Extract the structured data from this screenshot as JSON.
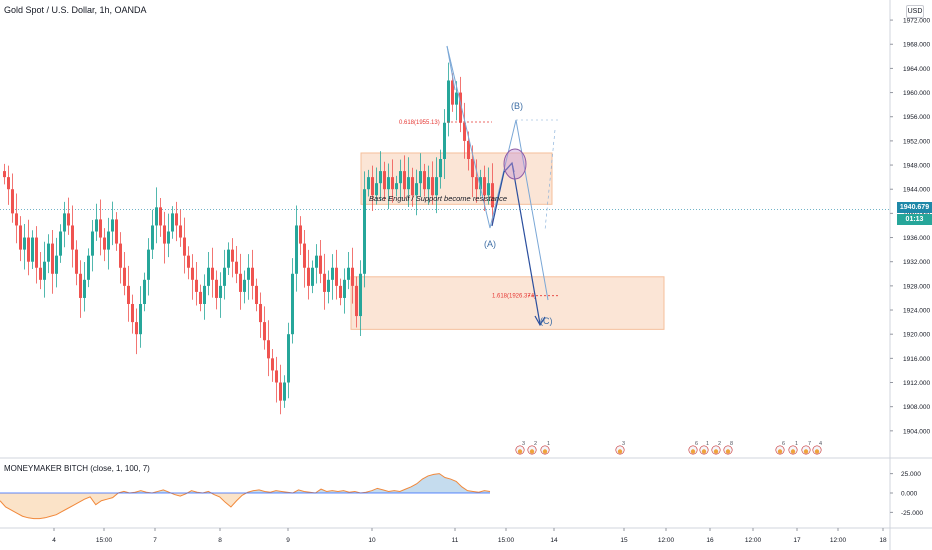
{
  "header": {
    "symbol_title": "Gold Spot / U.S. Dollar, 1h, OANDA",
    "currency_badge": "USD"
  },
  "indicator": {
    "title": "MONEYMAKER BITCH (close, 1, 100, 7)",
    "y_ticks": [
      "25.000",
      "0.000",
      "-25.000"
    ]
  },
  "price_scale": {
    "ticks": [
      "1972.000",
      "1968.000",
      "1964.000",
      "1960.000",
      "1956.000",
      "1952.000",
      "1948.000",
      "1944.000",
      "1940.000",
      "1936.000",
      "1932.000",
      "1928.000",
      "1924.000",
      "1920.000",
      "1916.000",
      "1912.000",
      "1908.000",
      "1904.000"
    ],
    "last_price": "1940.679",
    "countdown": "01:13"
  },
  "time_scale": {
    "ticks": [
      "4",
      "15:00",
      "7",
      "8",
      "9",
      "10",
      "11",
      "15:00",
      "14",
      "15",
      "12:00",
      "16",
      "12:00",
      "17",
      "12:00",
      "18"
    ]
  },
  "annotations": {
    "fib_0618": "0.618(1955.13)",
    "fib_1618": "1.618(1926.374)",
    "zone_text": "Base Engulf / Support become resistance",
    "wave_A": "(A)",
    "wave_B": "(B)",
    "wave_C": "(C)"
  },
  "events": {
    "badges": [
      "3",
      "2",
      "1",
      "3",
      "6",
      "1",
      "2",
      "8",
      "6",
      "1",
      "7",
      "4"
    ]
  },
  "colors": {
    "bull": "#26a69a",
    "bear": "#ef5350",
    "zone_fill": "#fbe1cf",
    "zone_stroke": "#f3b48a",
    "wave_line": "#7aa7d6",
    "projection_line": "#2b4f9e",
    "indicator_area": "#fbe3c8",
    "indicator_line": "#f1883a",
    "indicator_pos_fill": "#bfdaf2",
    "last_price_tag": "#1e88a8",
    "countdown_tag": "#26a69a"
  },
  "chart_data": {
    "type": "candlestick",
    "title": "Gold Spot / U.S. Dollar, 1h, OANDA",
    "ylim": [
      1900,
      1974
    ],
    "last_price": 1940.679,
    "close_path": [
      {
        "x": 0,
        "close": 1946
      },
      {
        "x": 4,
        "close": 1944
      },
      {
        "x": 8,
        "close": 1940
      },
      {
        "x": 12,
        "close": 1938
      },
      {
        "x": 16,
        "close": 1934
      },
      {
        "x": 20,
        "close": 1936
      },
      {
        "x": 24,
        "close": 1932
      },
      {
        "x": 28,
        "close": 1936
      },
      {
        "x": 32,
        "close": 1931
      },
      {
        "x": 36,
        "close": 1929
      },
      {
        "x": 40,
        "close": 1932
      },
      {
        "x": 44,
        "close": 1935
      },
      {
        "x": 48,
        "close": 1930
      },
      {
        "x": 52,
        "close": 1933
      },
      {
        "x": 56,
        "close": 1937
      },
      {
        "x": 60,
        "close": 1940
      },
      {
        "x": 64,
        "close": 1938
      },
      {
        "x": 68,
        "close": 1934
      },
      {
        "x": 72,
        "close": 1930
      },
      {
        "x": 76,
        "close": 1926
      },
      {
        "x": 80,
        "close": 1929
      },
      {
        "x": 84,
        "close": 1933
      },
      {
        "x": 88,
        "close": 1937
      },
      {
        "x": 92,
        "close": 1939
      },
      {
        "x": 96,
        "close": 1936
      },
      {
        "x": 100,
        "close": 1934
      },
      {
        "x": 104,
        "close": 1937
      },
      {
        "x": 108,
        "close": 1939
      },
      {
        "x": 112,
        "close": 1935
      },
      {
        "x": 116,
        "close": 1931
      },
      {
        "x": 120,
        "close": 1928
      },
      {
        "x": 124,
        "close": 1925
      },
      {
        "x": 128,
        "close": 1922
      },
      {
        "x": 132,
        "close": 1920
      },
      {
        "x": 136,
        "close": 1925
      },
      {
        "x": 140,
        "close": 1929
      },
      {
        "x": 144,
        "close": 1934
      },
      {
        "x": 148,
        "close": 1938
      },
      {
        "x": 152,
        "close": 1941
      },
      {
        "x": 156,
        "close": 1938
      },
      {
        "x": 160,
        "close": 1935
      },
      {
        "x": 164,
        "close": 1937
      },
      {
        "x": 168,
        "close": 1940
      },
      {
        "x": 172,
        "close": 1938
      },
      {
        "x": 176,
        "close": 1936
      },
      {
        "x": 180,
        "close": 1933
      },
      {
        "x": 184,
        "close": 1931
      },
      {
        "x": 188,
        "close": 1929
      },
      {
        "x": 192,
        "close": 1927
      },
      {
        "x": 196,
        "close": 1925
      },
      {
        "x": 200,
        "close": 1928
      },
      {
        "x": 204,
        "close": 1931
      },
      {
        "x": 208,
        "close": 1929
      },
      {
        "x": 212,
        "close": 1926
      },
      {
        "x": 216,
        "close": 1928
      },
      {
        "x": 220,
        "close": 1931
      },
      {
        "x": 224,
        "close": 1934
      },
      {
        "x": 228,
        "close": 1932
      },
      {
        "x": 232,
        "close": 1930
      },
      {
        "x": 236,
        "close": 1927
      },
      {
        "x": 240,
        "close": 1929
      },
      {
        "x": 244,
        "close": 1931
      },
      {
        "x": 248,
        "close": 1928
      },
      {
        "x": 252,
        "close": 1925
      },
      {
        "x": 256,
        "close": 1922
      },
      {
        "x": 260,
        "close": 1919
      },
      {
        "x": 264,
        "close": 1916
      },
      {
        "x": 268,
        "close": 1914
      },
      {
        "x": 272,
        "close": 1912
      },
      {
        "x": 276,
        "close": 1909
      },
      {
        "x": 280,
        "close": 1912
      },
      {
        "x": 284,
        "close": 1920
      },
      {
        "x": 288,
        "close": 1930
      },
      {
        "x": 292,
        "close": 1938
      },
      {
        "x": 296,
        "close": 1935
      },
      {
        "x": 300,
        "close": 1931
      },
      {
        "x": 304,
        "close": 1928
      },
      {
        "x": 308,
        "close": 1931
      },
      {
        "x": 312,
        "close": 1933
      },
      {
        "x": 316,
        "close": 1930
      },
      {
        "x": 320,
        "close": 1927
      },
      {
        "x": 324,
        "close": 1929
      },
      {
        "x": 328,
        "close": 1931
      },
      {
        "x": 332,
        "close": 1928
      },
      {
        "x": 336,
        "close": 1926
      },
      {
        "x": 340,
        "close": 1929
      },
      {
        "x": 344,
        "close": 1931
      },
      {
        "x": 348,
        "close": 1928
      },
      {
        "x": 352,
        "close": 1923
      },
      {
        "x": 356,
        "close": 1930
      },
      {
        "x": 360,
        "close": 1944
      },
      {
        "x": 364,
        "close": 1946
      },
      {
        "x": 368,
        "close": 1943
      },
      {
        "x": 372,
        "close": 1945
      },
      {
        "x": 376,
        "close": 1947
      },
      {
        "x": 380,
        "close": 1944
      },
      {
        "x": 384,
        "close": 1946
      },
      {
        "x": 388,
        "close": 1944
      },
      {
        "x": 392,
        "close": 1945
      },
      {
        "x": 396,
        "close": 1947
      },
      {
        "x": 400,
        "close": 1944
      },
      {
        "x": 404,
        "close": 1946
      },
      {
        "x": 408,
        "close": 1943
      },
      {
        "x": 412,
        "close": 1945
      },
      {
        "x": 416,
        "close": 1947
      },
      {
        "x": 420,
        "close": 1944
      },
      {
        "x": 424,
        "close": 1946
      },
      {
        "x": 428,
        "close": 1943
      },
      {
        "x": 432,
        "close": 1946
      },
      {
        "x": 436,
        "close": 1949
      },
      {
        "x": 440,
        "close": 1955
      },
      {
        "x": 444,
        "close": 1962
      },
      {
        "x": 448,
        "close": 1958
      },
      {
        "x": 452,
        "close": 1960
      },
      {
        "x": 456,
        "close": 1955
      },
      {
        "x": 460,
        "close": 1952
      },
      {
        "x": 464,
        "close": 1949
      },
      {
        "x": 468,
        "close": 1946
      },
      {
        "x": 472,
        "close": 1944
      },
      {
        "x": 476,
        "close": 1946
      },
      {
        "x": 480,
        "close": 1943
      },
      {
        "x": 484,
        "close": 1945
      },
      {
        "x": 488,
        "close": 1941
      }
    ],
    "zones": [
      {
        "name": "resistance",
        "y_top": 1950,
        "y_bottom": 1941.5
      },
      {
        "name": "target",
        "y_top": 1929.5,
        "y_bottom": 1920.8
      }
    ],
    "fib_levels": [
      {
        "label": "0.618(1955.13)",
        "value": 1955.13
      },
      {
        "label": "1.618(1926.374)",
        "value": 1926.374
      }
    ],
    "indicator": {
      "name": "MONEYMAKER BITCH (close, 1, 100, 7)",
      "ylim": [
        -40,
        40
      ],
      "values": [
        -10,
        -18,
        -22,
        -26,
        -30,
        -32,
        -33,
        -33,
        -32,
        -30,
        -28,
        -24,
        -20,
        -16,
        -12,
        -8,
        -5,
        -15,
        -10,
        -8,
        -6,
        0,
        2,
        0,
        1,
        3,
        1,
        0,
        2,
        4,
        1,
        -2,
        -4,
        -1,
        3,
        1,
        0,
        2,
        -2,
        -5,
        -12,
        -18,
        -10,
        -3,
        1,
        3,
        4,
        2,
        1,
        3,
        2,
        1,
        0,
        4,
        2,
        1,
        0,
        5,
        2,
        3,
        2,
        3,
        1,
        2,
        0,
        1,
        3,
        6,
        4,
        2,
        3,
        2,
        5,
        8,
        12,
        18,
        22,
        24,
        25,
        20,
        18,
        15,
        8,
        3,
        2,
        1,
        3,
        2
      ],
      "y_ticks": [
        25,
        0,
        -25
      ]
    }
  }
}
